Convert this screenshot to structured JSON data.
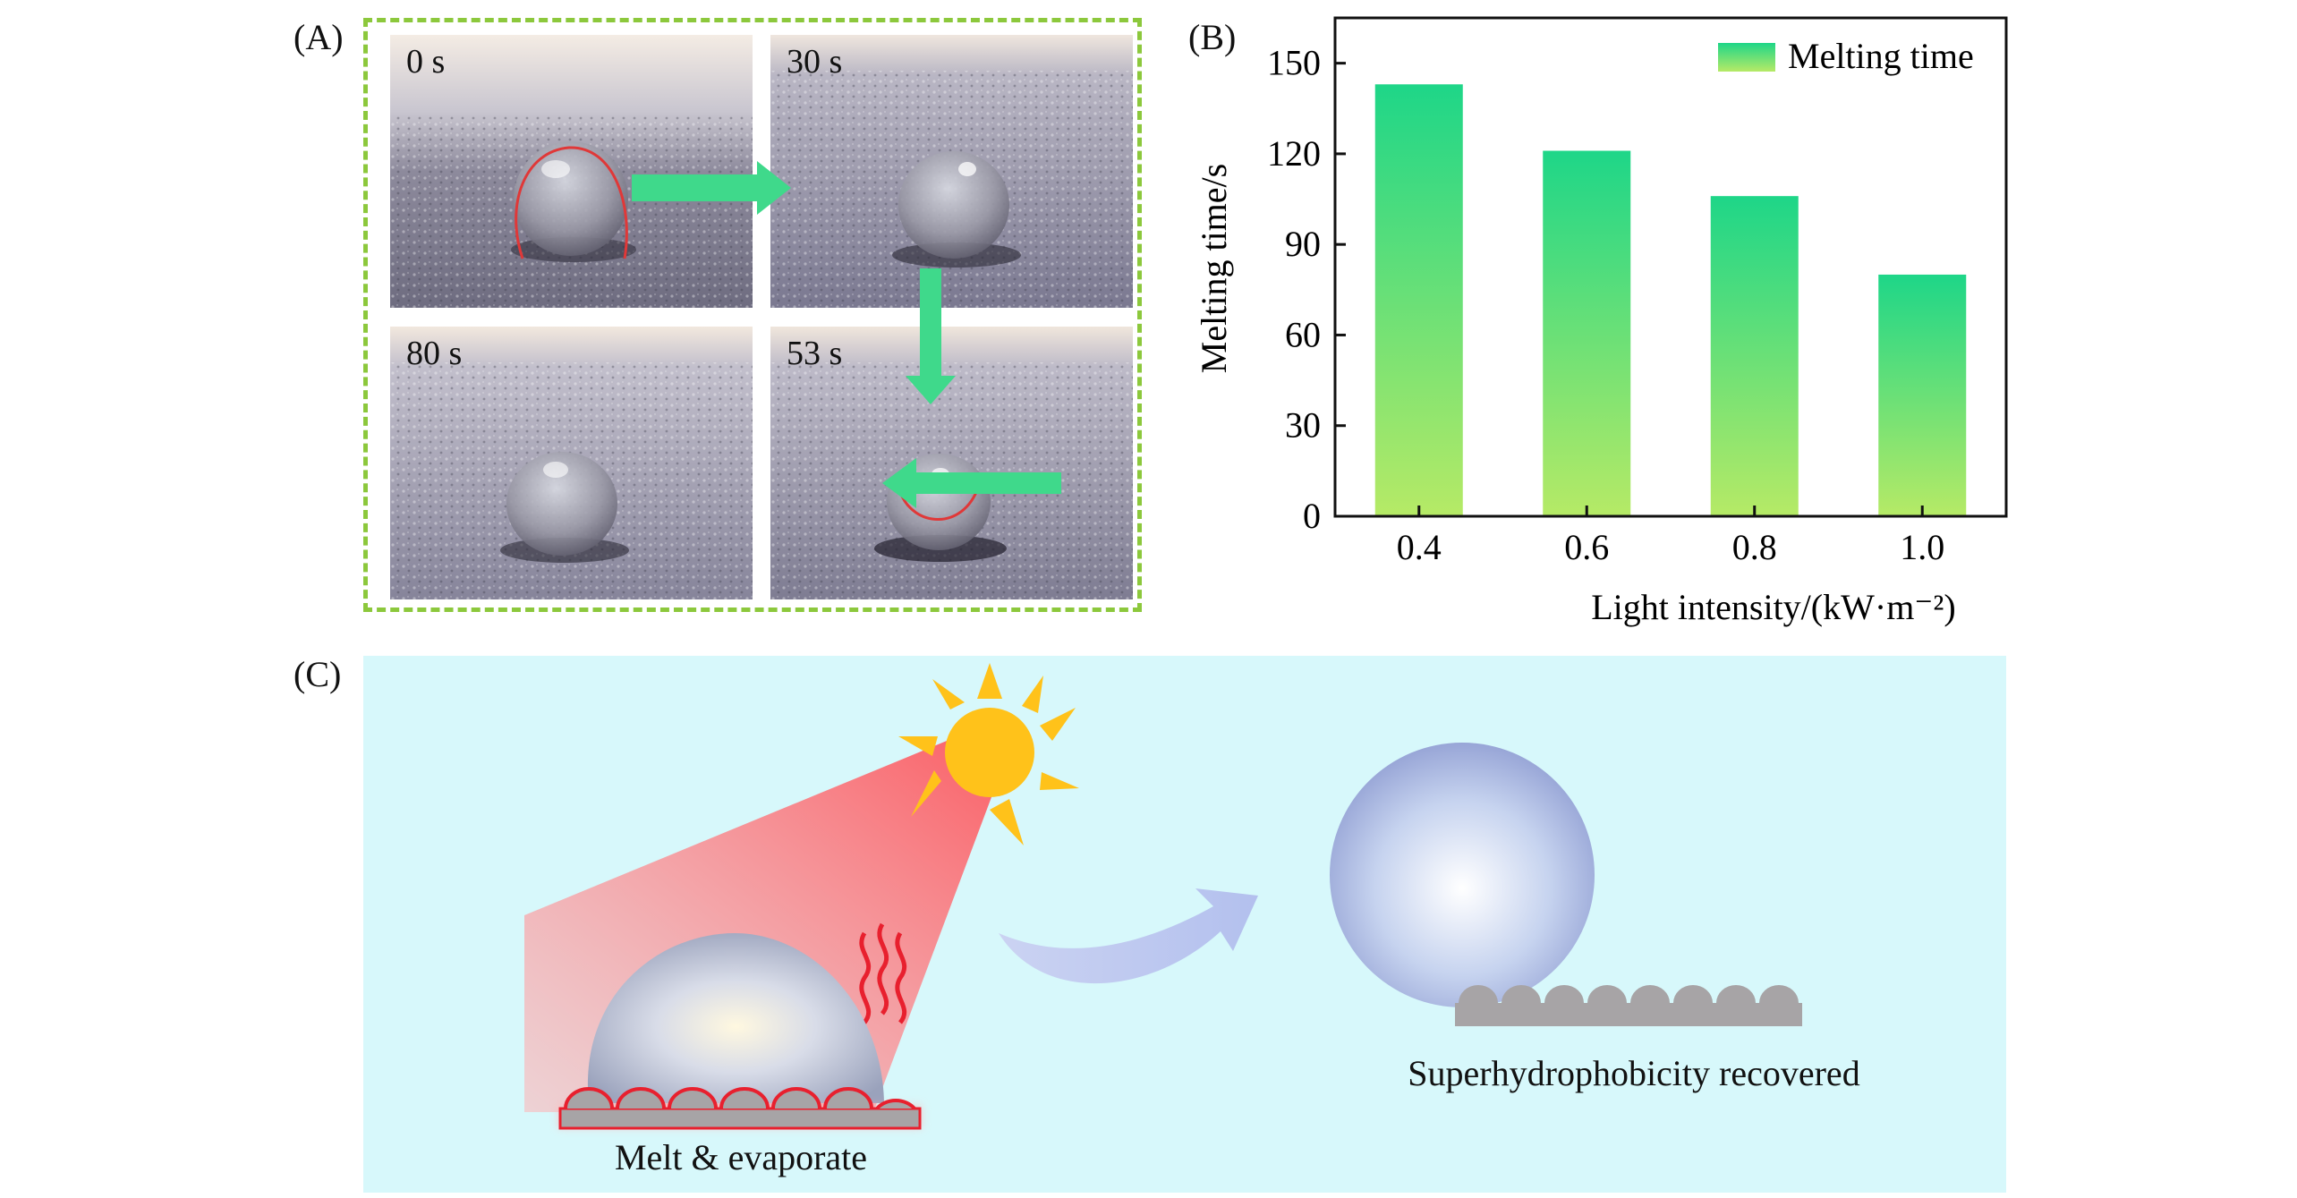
{
  "panelA": {
    "label": "(A)",
    "frames": [
      {
        "time": "0 s",
        "outline": "contact-line"
      },
      {
        "time": "30 s",
        "outline": "none"
      },
      {
        "time": "53 s",
        "outline": "melting-edge"
      },
      {
        "time": "80 s",
        "outline": "none"
      }
    ],
    "colors": {
      "frame_border": "#8cc83c",
      "arrow": "#3fd98b",
      "outline": "#e03838"
    }
  },
  "panelB": {
    "label": "(B)",
    "chart_data": {
      "type": "bar",
      "categories": [
        "0.4",
        "0.6",
        "0.8",
        "1.0"
      ],
      "series": [
        {
          "name": "Melting time",
          "values": [
            143,
            121,
            106,
            80
          ]
        }
      ],
      "title": "",
      "xlabel": "Light intensity/(kW·m⁻²)",
      "ylabel": "Melting time/s",
      "ylim": [
        0,
        165
      ],
      "yticks": [
        0,
        30,
        60,
        90,
        120,
        150
      ],
      "ytick_labels": [
        "0",
        "30",
        "60",
        "90",
        "120",
        "150"
      ],
      "legend": "top-right",
      "colors": {
        "bar_top": "#1ed688",
        "bar_bottom": "#b6ea66"
      }
    }
  },
  "panelC": {
    "label": "(C)",
    "left_caption": "Melt & evaporate",
    "right_caption": "Superhydrophobicity recovered",
    "colors": {
      "background": "#d7f8fb",
      "sun": "#ffc21a",
      "beam": "#ff6a6a",
      "substrate": "#a7a4a6",
      "heat": "#e8202e"
    }
  }
}
